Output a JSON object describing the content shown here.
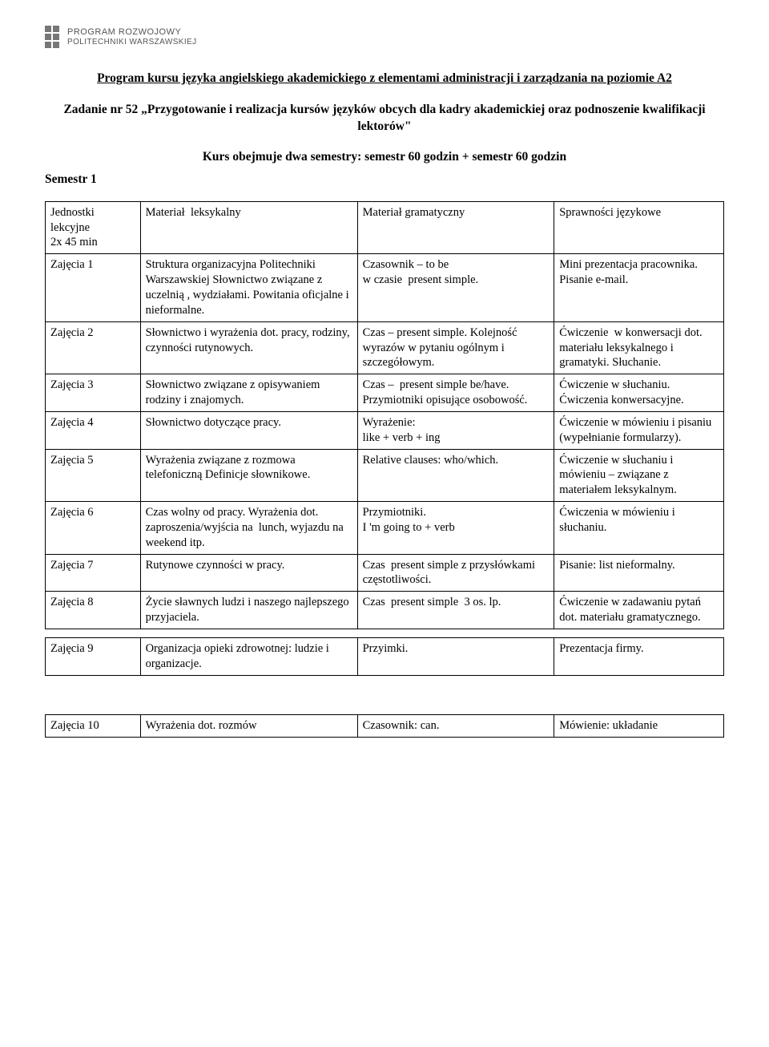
{
  "logo": {
    "line1": "PROGRAM ROZWOJOWY",
    "line2": "POLITECHNIKI WARSZAWSKIEJ",
    "square_color": "#777777"
  },
  "title": "Program kursu języka angielskiego akademickiego z elementami administracji i zarządzania na poziomie A2",
  "subtitle": "Zadanie nr 52 „Przygotowanie i realizacja kursów języków obcych dla kadry akademickiej oraz podnoszenie kwalifikacji lektorów\"",
  "course_line": "Kurs obejmuje dwa semestry: semestr 60 godzin + semestr 60 godzin",
  "semester": "Semestr 1",
  "table1": {
    "headers": {
      "unit": "Jednostki lekcyjne\n2x 45 min",
      "lexical": "Materiał  leksykalny",
      "grammar": "Materiał gramatyczny",
      "skills": "Sprawności językowe"
    },
    "rows": [
      {
        "unit": "Zajęcia 1",
        "lexical": "Struktura organizacyjna Politechniki Warszawskiej Słownictwo związane z uczelnią , wydziałami. Powitania oficjalne i nieformalne.",
        "grammar": "Czasownik – to be\nw czasie  present simple.",
        "skills": "Mini prezentacja pracownika.\nPisanie e-mail."
      },
      {
        "unit": "Zajęcia 2",
        "lexical": "Słownictwo i wyrażenia dot. pracy, rodziny, czynności rutynowych.",
        "grammar": "Czas – present simple. Kolejność wyrazów w pytaniu ogólnym i szczegółowym.",
        "skills": "Ćwiczenie  w konwersacji dot.  materiału leksykalnego i gramatyki. Słuchanie."
      },
      {
        "unit": "Zajęcia 3",
        "lexical": "Słownictwo związane z opisywaniem rodziny i znajomych.",
        "grammar": "Czas –  present simple be/have. Przymiotniki opisujące osobowość.",
        "skills": "Ćwiczenie w słuchaniu. Ćwiczenia konwersacyjne."
      },
      {
        "unit": "Zajęcia 4",
        "lexical": "Słownictwo dotyczące pracy.",
        "grammar": "Wyrażenie:\nlike + verb + ing",
        "skills": "Ćwiczenie w mówieniu i pisaniu (wypełnianie formularzy)."
      },
      {
        "unit": "Zajęcia 5",
        "lexical": "Wyrażenia związane z rozmowa telefoniczną Definicje słownikowe.",
        "grammar": "Relative clauses: who/which.",
        "skills": "Ćwiczenie w słuchaniu i mówieniu – związane z materiałem leksykalnym."
      },
      {
        "unit": "Zajęcia 6",
        "lexical": "Czas wolny od pracy. Wyrażenia dot. zaproszenia/wyjścia na  lunch, wyjazdu na\nweekend itp.",
        "grammar": "Przymiotniki.\nI 'm going to + verb",
        "skills": "Ćwiczenia w mówieniu i słuchaniu."
      },
      {
        "unit": "Zajęcia 7",
        "lexical": "Rutynowe czynności w pracy.",
        "grammar": "Czas  present simple z przysłówkami częstotliwości.",
        "skills": "Pisanie: list nieformalny."
      },
      {
        "unit": "Zajęcia 8",
        "lexical": "Życie sławnych ludzi i naszego najlepszego przyjaciela.",
        "grammar": "Czas  present simple  3 os. lp.",
        "skills": "Ćwiczenie w zadawaniu pytań dot. materiału gramatycznego."
      }
    ]
  },
  "table2": {
    "rows": [
      {
        "unit": "Zajęcia 9",
        "lexical": "Organizacja opieki zdrowotnej: ludzie i organizacje.",
        "grammar": "Przyimki.",
        "skills": "Prezentacja firmy."
      }
    ]
  },
  "table3": {
    "rows": [
      {
        "unit": "Zajęcia 10",
        "lexical": "Wyrażenia dot. rozmów",
        "grammar": "Czasownik: can.",
        "skills": "Mówienie: układanie"
      }
    ]
  },
  "colors": {
    "text": "#000000",
    "background": "#ffffff",
    "border": "#000000"
  }
}
